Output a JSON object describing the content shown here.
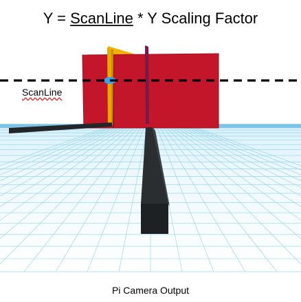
{
  "title": {
    "prefix": "Y = ",
    "underlined": "ScanLine",
    "suffix": " * Y Scaling Factor"
  },
  "scanline_label": "ScanLine",
  "caption": "Pi Camera Output",
  "colors": {
    "wall": "#c4162a",
    "wall_edge": "#9e1020",
    "flag": "#f2b400",
    "grid_line": "#7fc8e6",
    "horizon": "#4aa8d8",
    "rail": "#222628",
    "marker": "#3aa2e8",
    "pole": "#7a1848"
  }
}
